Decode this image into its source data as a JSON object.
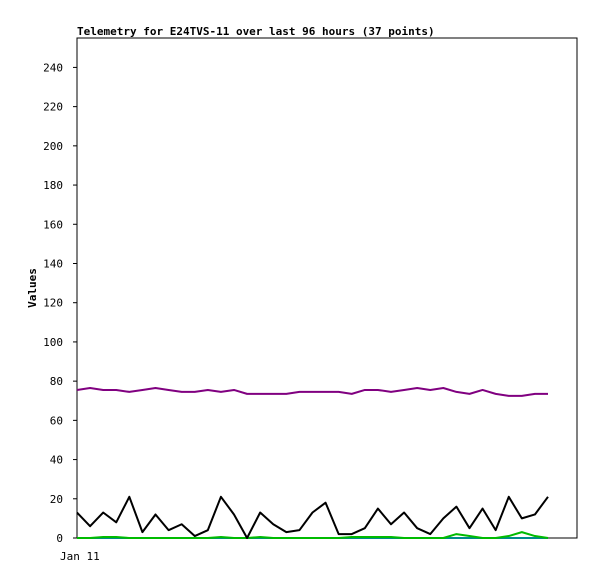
{
  "chart_data": {
    "type": "line",
    "title": "Telemetry for E24TVS-11 over last 96 hours (37 points)",
    "xlabel": "",
    "ylabel": "Values",
    "x_tick_labels": [
      "Jan 11"
    ],
    "ylim": [
      0,
      255
    ],
    "y_ticks": [
      0,
      20,
      40,
      60,
      80,
      100,
      120,
      140,
      160,
      180,
      200,
      220,
      240
    ],
    "grid": false,
    "legend": "none",
    "series": [
      {
        "color": "#800080",
        "values": [
          75.5,
          76.5,
          75.5,
          75.5,
          74.5,
          75.5,
          76.5,
          75.5,
          74.5,
          74.5,
          75.5,
          74.5,
          75.5,
          73.5,
          73.5,
          73.5,
          73.5,
          74.5,
          74.5,
          74.5,
          74.5,
          73.5,
          75.5,
          75.5,
          74.5,
          75.5,
          76.5,
          75.5,
          76.5,
          74.5,
          73.5,
          75.5,
          73.5,
          72.5,
          72.5,
          73.5,
          73.5
        ]
      },
      {
        "color": "#000000",
        "values": [
          13,
          6,
          13,
          8,
          21,
          3,
          12,
          4,
          7,
          1,
          4,
          21,
          12,
          0,
          13,
          7,
          3,
          4,
          13,
          18,
          2,
          2,
          5,
          15,
          7,
          13,
          5,
          2,
          10,
          16,
          5,
          15,
          4,
          21,
          10,
          12,
          21
        ]
      },
      {
        "color": "#00bb00",
        "values": [
          0,
          0,
          0.5,
          0.5,
          0,
          0,
          0,
          0,
          0,
          0,
          0,
          0.5,
          0,
          0,
          0.5,
          0,
          0,
          0,
          0,
          0,
          0,
          0.5,
          0.5,
          0.5,
          0.5,
          0,
          0,
          0,
          0,
          2,
          1,
          0,
          0,
          1,
          3,
          1,
          0
        ]
      },
      {
        "color": "#008b8b",
        "values": [
          0,
          0,
          0,
          0,
          0,
          0,
          0,
          0,
          0,
          0,
          0,
          0,
          0,
          0,
          0,
          0,
          0,
          0,
          0,
          0,
          0,
          0,
          0,
          0,
          0,
          0,
          0,
          0,
          0,
          0,
          0,
          0,
          0,
          0,
          0,
          0,
          0
        ]
      }
    ]
  }
}
